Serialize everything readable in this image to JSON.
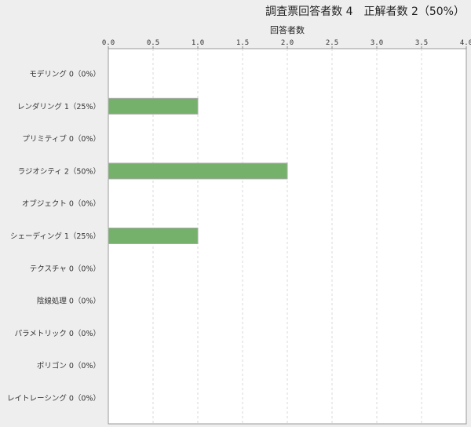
{
  "title": "調査票回答者数 4　正解者数 2（50%）",
  "chart_data": {
    "type": "bar",
    "orientation": "horizontal",
    "xlabel": "回答者数",
    "xlabel_position": "top",
    "xlim": [
      0,
      4.0
    ],
    "xticks": [
      "0.0",
      "0.5",
      "1.0",
      "1.5",
      "2.0",
      "2.5",
      "3.0",
      "3.5",
      "4.0"
    ],
    "grid": true,
    "bar_color": "#75b16a",
    "categories": [
      "モデリング 0（0%）",
      "レンダリング 1（25%）",
      "プリミティブ 0（0%）",
      "ラジオシティ 2（50%）",
      "オブジェクト 0（0%）",
      "シェーディング 1（25%）",
      "テクスチャ 0（0%）",
      "陰線処理 0（0%）",
      "パラメトリック 0（0%）",
      "ポリゴン 0（0%）",
      "レイトレーシング 0（0%）"
    ],
    "values": [
      0,
      1,
      0,
      2,
      0,
      1,
      0,
      0,
      0,
      0,
      0
    ]
  }
}
